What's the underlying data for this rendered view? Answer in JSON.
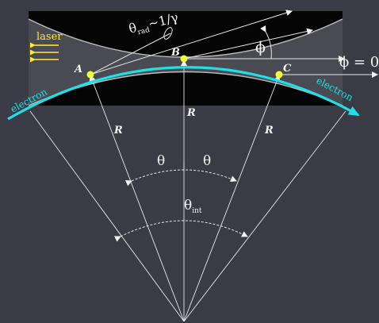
{
  "labels": {
    "laser": "laser",
    "electron_left": "electron",
    "electron_right": "electron",
    "A": "A",
    "B": "B",
    "C": "C",
    "R_center": "R",
    "R_left": "R",
    "R_right": "R",
    "theta_left": "θ",
    "theta_right": "θ",
    "theta_rad_main": "θ",
    "theta_rad_sub": "rad",
    "theta_rad_tail": "~1/γ",
    "phi": "ϕ",
    "phi_eq_zero": "ϕ = 0",
    "theta_int_main": "θ",
    "theta_int_sub": "int"
  },
  "colors": {
    "background": "#3b3b45",
    "beam_band": "#050505",
    "beam_edge": "#bdbdbd",
    "electron_path": "#1ee0e6",
    "points": "#f0ff3c",
    "laser_arrows": "#ffee33",
    "laser_text": "#ffee33",
    "lines": "#e8e8e8"
  }
}
